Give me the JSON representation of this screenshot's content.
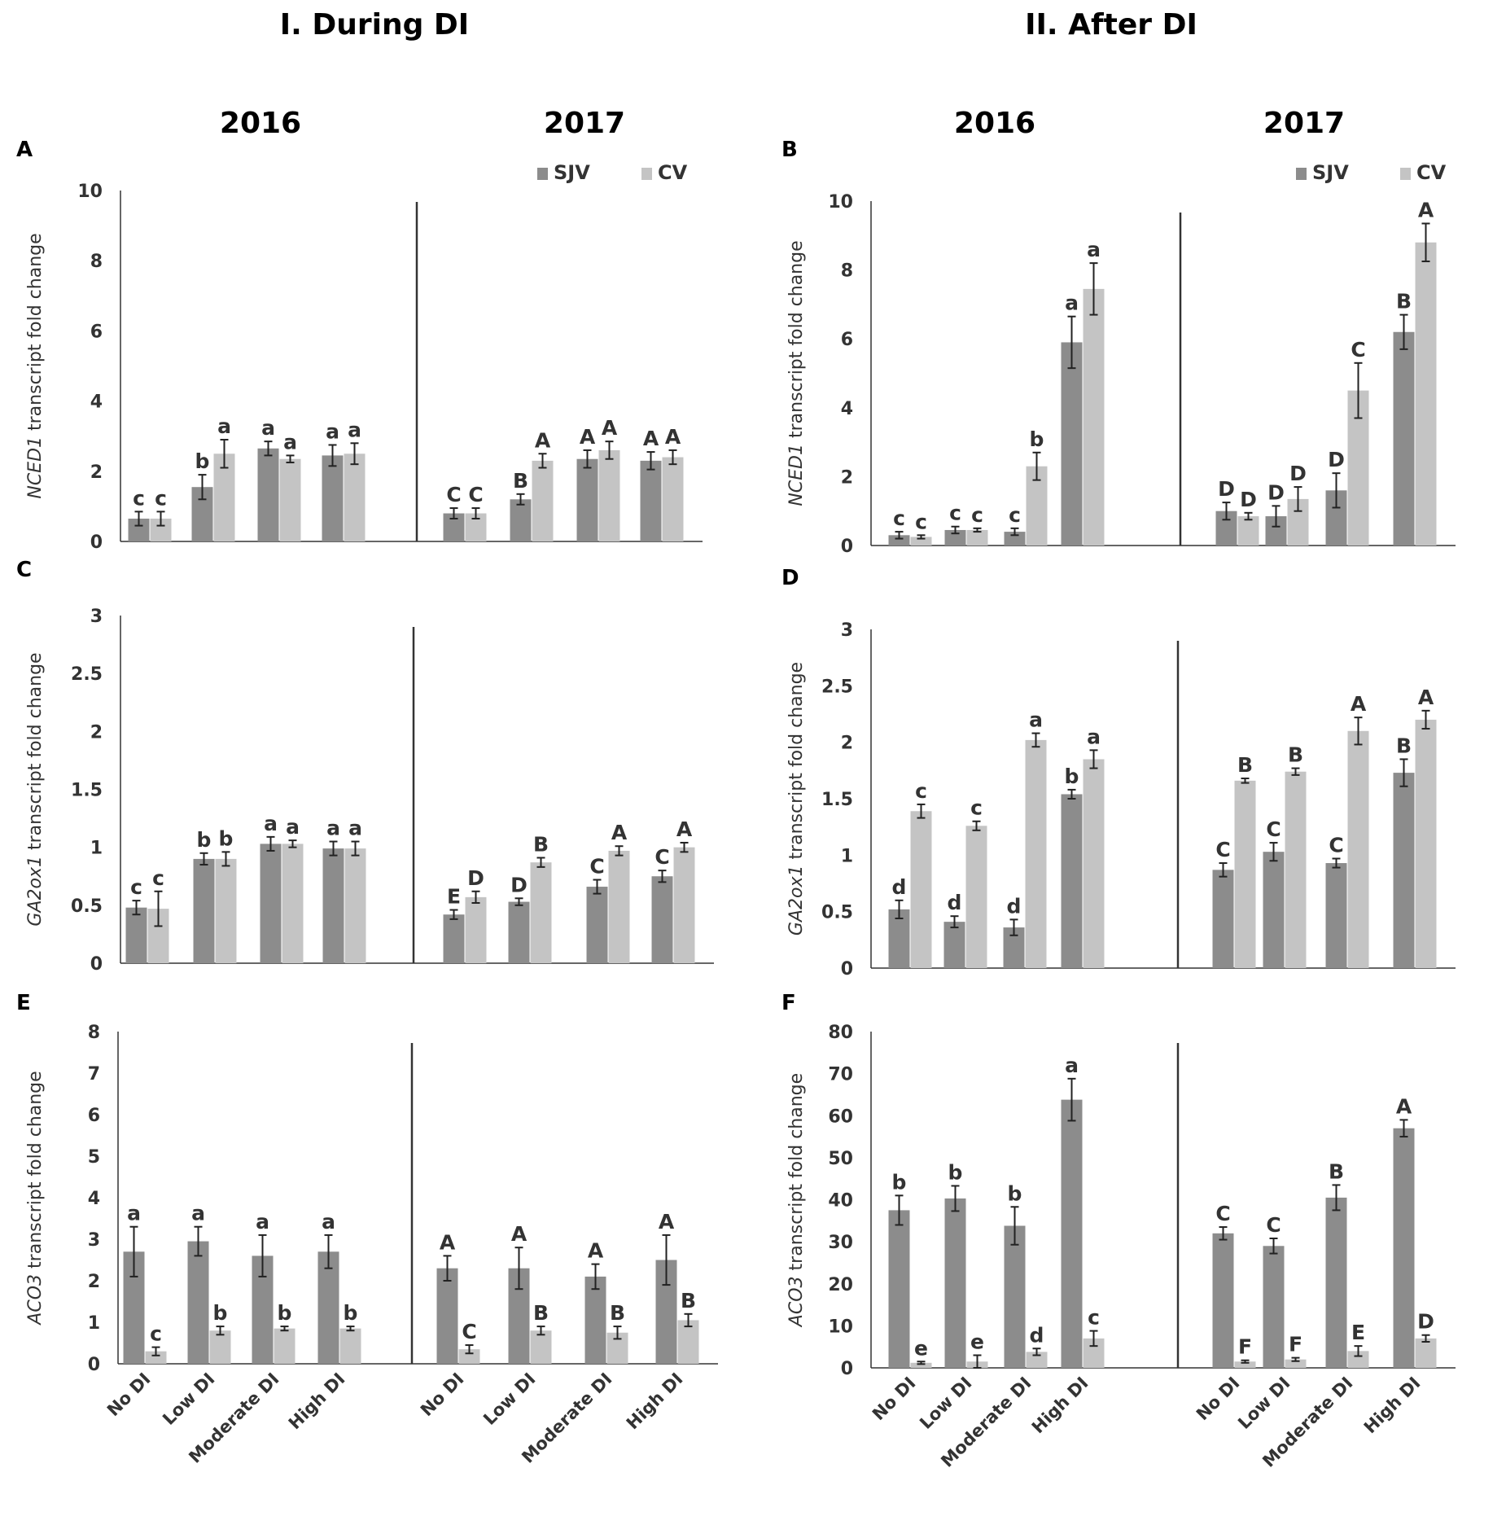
{
  "headers": {
    "during": "I. During DI",
    "after": "II. After DI",
    "year_left": "2016",
    "year_right": "2017"
  },
  "legend": {
    "labels": [
      "SJV",
      "CV"
    ],
    "colors": [
      "#8c8c8c",
      "#c4c4c4"
    ]
  },
  "categories": [
    "No DI",
    "Low DI",
    "Moderate DI",
    "High DI"
  ],
  "chart_data": [
    {
      "type": "bar",
      "panel": "A",
      "column": "During DI",
      "ylabel_gene": "NCED1",
      "ylabel_rest": " transcript fold change",
      "ylim": [
        0,
        10
      ],
      "yticks": [
        "0",
        "2",
        "4",
        "6",
        "8",
        "10"
      ],
      "show_legend": true,
      "years": [
        "2016",
        "2017"
      ],
      "series": [
        {
          "name": "SJV",
          "values": [
            [
              0.65,
              1.55,
              2.65,
              2.45
            ],
            [
              0.8,
              1.2,
              2.35,
              2.3
            ]
          ],
          "errors": [
            [
              0.2,
              0.35,
              0.2,
              0.3
            ],
            [
              0.15,
              0.15,
              0.25,
              0.25
            ]
          ],
          "letters": [
            [
              "c",
              "b",
              "a",
              "a"
            ],
            [
              "C",
              "B",
              "A",
              "A"
            ]
          ]
        },
        {
          "name": "CV",
          "values": [
            [
              0.65,
              2.5,
              2.35,
              2.5
            ],
            [
              0.8,
              2.3,
              2.6,
              2.4
            ]
          ],
          "errors": [
            [
              0.2,
              0.4,
              0.1,
              0.3
            ],
            [
              0.15,
              0.2,
              0.25,
              0.2
            ]
          ],
          "letters": [
            [
              "c",
              "a",
              "a",
              "a"
            ],
            [
              "C",
              "A",
              "A",
              "A"
            ]
          ]
        }
      ]
    },
    {
      "type": "bar",
      "panel": "B",
      "column": "After DI",
      "ylabel_gene": "NCED1",
      "ylabel_rest": " transcript fold change",
      "ylim": [
        0,
        10
      ],
      "yticks": [
        "0",
        "2",
        "4",
        "6",
        "8",
        "10"
      ],
      "show_legend": true,
      "years": [
        "2016",
        "2017"
      ],
      "series": [
        {
          "name": "SJV",
          "values": [
            [
              0.3,
              0.45,
              0.4,
              5.9
            ],
            [
              1.0,
              0.85,
              1.6,
              6.2
            ]
          ],
          "errors": [
            [
              0.1,
              0.1,
              0.1,
              0.75
            ],
            [
              0.25,
              0.3,
              0.5,
              0.5
            ]
          ],
          "letters": [
            [
              "c",
              "c",
              "c",
              "a"
            ],
            [
              "D",
              "D",
              "D",
              "B"
            ]
          ]
        },
        {
          "name": "CV",
          "values": [
            [
              0.25,
              0.45,
              2.3,
              7.45
            ],
            [
              0.85,
              1.35,
              4.5,
              8.8
            ]
          ],
          "errors": [
            [
              0.05,
              0.05,
              0.4,
              0.75
            ],
            [
              0.1,
              0.35,
              0.8,
              0.55
            ]
          ],
          "letters": [
            [
              "c",
              "c",
              "b",
              "a"
            ],
            [
              "D",
              "D",
              "C",
              "A"
            ]
          ]
        }
      ]
    },
    {
      "type": "bar",
      "panel": "C",
      "column": "During DI",
      "ylabel_gene": "GA2ox1",
      "ylabel_rest": " transcript fold change",
      "ylim": [
        0,
        3
      ],
      "yticks": [
        "0",
        "0.5",
        "1",
        "1.5",
        "2",
        "2.5",
        "3"
      ],
      "show_legend": false,
      "years": [
        "2016",
        "2017"
      ],
      "series": [
        {
          "name": "SJV",
          "values": [
            [
              0.48,
              0.9,
              1.03,
              0.99
            ],
            [
              0.42,
              0.53,
              0.66,
              0.75
            ]
          ],
          "errors": [
            [
              0.06,
              0.05,
              0.06,
              0.06
            ],
            [
              0.04,
              0.03,
              0.06,
              0.05
            ]
          ],
          "letters": [
            [
              "c",
              "b",
              "a",
              "a"
            ],
            [
              "E",
              "D",
              "C",
              "C"
            ]
          ]
        },
        {
          "name": "CV",
          "values": [
            [
              0.47,
              0.9,
              1.03,
              0.99
            ],
            [
              0.57,
              0.87,
              0.97,
              1.0
            ]
          ],
          "errors": [
            [
              0.15,
              0.06,
              0.03,
              0.06
            ],
            [
              0.05,
              0.04,
              0.04,
              0.04
            ]
          ],
          "letters": [
            [
              "c",
              "b",
              "a",
              "a"
            ],
            [
              "D",
              "B",
              "A",
              "A"
            ]
          ]
        }
      ]
    },
    {
      "type": "bar",
      "panel": "D",
      "column": "After DI",
      "ylabel_gene": "GA2ox1",
      "ylabel_rest": " transcript fold change",
      "ylim": [
        0,
        3
      ],
      "yticks": [
        "0",
        "0.5",
        "1",
        "1.5",
        "2",
        "2.5",
        "3"
      ],
      "show_legend": false,
      "years": [
        "2016",
        "2017"
      ],
      "series": [
        {
          "name": "SJV",
          "values": [
            [
              0.52,
              0.41,
              0.36,
              1.54
            ],
            [
              0.87,
              1.03,
              0.93,
              1.73
            ]
          ],
          "errors": [
            [
              0.08,
              0.05,
              0.07,
              0.04
            ],
            [
              0.06,
              0.08,
              0.04,
              0.12
            ]
          ],
          "letters": [
            [
              "d",
              "d",
              "d",
              "b"
            ],
            [
              "C",
              "C",
              "C",
              "B"
            ]
          ]
        },
        {
          "name": "CV",
          "values": [
            [
              1.39,
              1.26,
              2.02,
              1.85
            ],
            [
              1.66,
              1.74,
              2.1,
              2.2
            ]
          ],
          "errors": [
            [
              0.06,
              0.04,
              0.06,
              0.08
            ],
            [
              0.02,
              0.03,
              0.12,
              0.08
            ]
          ],
          "letters": [
            [
              "c",
              "c",
              "a",
              "a"
            ],
            [
              "B",
              "B",
              "A",
              "A"
            ]
          ]
        }
      ]
    },
    {
      "type": "bar",
      "panel": "E",
      "column": "During DI",
      "ylabel_gene": "ACO3",
      "ylabel_rest": " transcript fold change",
      "ylim": [
        0,
        8
      ],
      "yticks": [
        "0",
        "1",
        "2",
        "3",
        "4",
        "5",
        "6",
        "7",
        "8"
      ],
      "show_legend": false,
      "years": [
        "2016",
        "2017"
      ],
      "series": [
        {
          "name": "SJV",
          "values": [
            [
              2.7,
              2.95,
              2.6,
              2.7
            ],
            [
              2.3,
              2.3,
              2.1,
              2.5
            ]
          ],
          "errors": [
            [
              0.6,
              0.35,
              0.5,
              0.4
            ],
            [
              0.3,
              0.5,
              0.3,
              0.6
            ]
          ],
          "letters": [
            [
              "a",
              "a",
              "a",
              "a"
            ],
            [
              "A",
              "A",
              "A",
              "A"
            ]
          ]
        },
        {
          "name": "CV",
          "values": [
            [
              0.3,
              0.8,
              0.85,
              0.85
            ],
            [
              0.35,
              0.8,
              0.75,
              1.05
            ]
          ],
          "errors": [
            [
              0.1,
              0.1,
              0.05,
              0.05
            ],
            [
              0.1,
              0.1,
              0.15,
              0.15
            ]
          ],
          "letters": [
            [
              "c",
              "b",
              "b",
              "b"
            ],
            [
              "C",
              "B",
              "B",
              "B"
            ]
          ]
        }
      ]
    },
    {
      "type": "bar",
      "panel": "F",
      "column": "After DI",
      "ylabel_gene": "ACO3",
      "ylabel_rest": " transcript fold change",
      "ylim": [
        0,
        80
      ],
      "yticks": [
        "0",
        "10",
        "20",
        "30",
        "40",
        "50",
        "60",
        "70",
        "80"
      ],
      "show_legend": false,
      "years": [
        "2016",
        "2017"
      ],
      "series": [
        {
          "name": "SJV",
          "values": [
            [
              37.5,
              40.3,
              33.8,
              63.8
            ],
            [
              32.0,
              29.0,
              40.5,
              57.0
            ]
          ],
          "errors": [
            [
              3.5,
              3.0,
              4.5,
              5.0
            ],
            [
              1.5,
              1.8,
              3.0,
              2.0
            ]
          ],
          "letters": [
            [
              "b",
              "b",
              "b",
              "a"
            ],
            [
              "C",
              "C",
              "B",
              "A"
            ]
          ]
        },
        {
          "name": "CV",
          "values": [
            [
              1.2,
              1.5,
              3.8,
              7.0
            ],
            [
              1.5,
              2.0,
              4.0,
              7.0
            ]
          ],
          "errors": [
            [
              0.3,
              1.5,
              0.8,
              1.8
            ],
            [
              0.3,
              0.4,
              1.2,
              0.8
            ]
          ],
          "letters": [
            [
              "e",
              "e",
              "d",
              "c"
            ],
            [
              "F",
              "F",
              "E",
              "D"
            ]
          ]
        }
      ]
    }
  ]
}
